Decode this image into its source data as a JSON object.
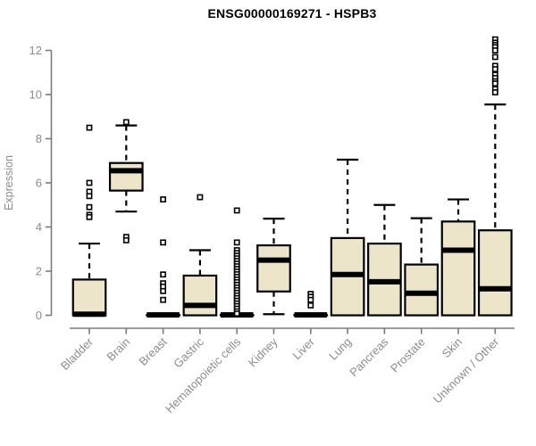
{
  "header": {
    "title": "ENSG00000169271 - HSPB3"
  },
  "colors": {
    "background": "#ffffff",
    "box_fill": "#ece5c9",
    "box_stroke": "#000000",
    "median": "#000000",
    "whisker": "#000000",
    "outlier": "#000000",
    "axis": "#7b7b7b",
    "tick_label": "#8c8c8c",
    "title": "#000000"
  },
  "chart_data": {
    "type": "boxplot",
    "title": "ENSG00000169271 - HSPB3",
    "xlabel": "",
    "ylabel": "Expression",
    "ylim": [
      0,
      12.6
    ],
    "yticks": [
      0,
      2,
      4,
      6,
      8,
      10,
      12
    ],
    "grid": false,
    "legend": false,
    "categories": [
      "Bladder",
      "Brain",
      "Breast",
      "Gastric",
      "Hematopoietic cells",
      "Kidney",
      "Liver",
      "Lung",
      "Pancreas",
      "Prostate",
      "Skin",
      "Unknown / Other"
    ],
    "series": [
      {
        "name": "Bladder",
        "low": 0,
        "q1": 0,
        "median": 0.05,
        "q3": 1.62,
        "high": 3.25,
        "outliers": [
          8.5,
          6.0,
          5.6,
          5.4,
          4.9,
          4.55,
          4.45
        ]
      },
      {
        "name": "Brain",
        "low": 4.7,
        "q1": 5.65,
        "median": 6.55,
        "q3": 6.9,
        "high": 8.6,
        "outliers": [
          8.75,
          3.55,
          3.4
        ]
      },
      {
        "name": "Breast",
        "low": 0,
        "q1": 0,
        "median": 0.02,
        "q3": 0.02,
        "high": 0,
        "outliers": [
          5.25,
          3.3,
          1.85,
          1.45,
          1.3,
          1.1,
          0.7
        ]
      },
      {
        "name": "Gastric",
        "low": 0,
        "q1": 0,
        "median": 0.45,
        "q3": 1.8,
        "high": 2.95,
        "outliers": [
          5.35
        ]
      },
      {
        "name": "Hematopoietic cells",
        "low": 0,
        "q1": 0,
        "median": 0.02,
        "q3": 0.02,
        "high": 0,
        "outliers": [
          4.75,
          3.3,
          2.95,
          2.82,
          2.7,
          2.58,
          2.46,
          2.34,
          2.22,
          2.1,
          1.98,
          1.86,
          1.74,
          1.62,
          1.5,
          1.38,
          1.26,
          1.14,
          1.02,
          0.9,
          0.78,
          0.66,
          0.54,
          0.42,
          0.3,
          0.18,
          0.08
        ]
      },
      {
        "name": "Kidney",
        "low": 0.05,
        "q1": 1.08,
        "median": 2.5,
        "q3": 3.17,
        "high": 4.38,
        "outliers": []
      },
      {
        "name": "Liver",
        "low": 0,
        "q1": 0,
        "median": 0.02,
        "q3": 0.02,
        "high": 0,
        "outliers": [
          0.97,
          0.84,
          0.7,
          0.45
        ]
      },
      {
        "name": "Lung",
        "low": 0,
        "q1": 0,
        "median": 1.85,
        "q3": 3.5,
        "high": 7.05,
        "outliers": []
      },
      {
        "name": "Pancreas",
        "low": 0,
        "q1": 0,
        "median": 1.52,
        "q3": 3.25,
        "high": 5.0,
        "outliers": []
      },
      {
        "name": "Prostate",
        "low": 0,
        "q1": 0,
        "median": 1.0,
        "q3": 2.3,
        "high": 4.4,
        "outliers": []
      },
      {
        "name": "Skin",
        "low": 0,
        "q1": 0,
        "median": 2.95,
        "q3": 4.25,
        "high": 5.25,
        "outliers": []
      },
      {
        "name": "Unknown / Other",
        "low": 0,
        "q1": 0,
        "median": 1.2,
        "q3": 3.85,
        "high": 9.55,
        "outliers": [
          12.5,
          12.35,
          12.25,
          12.15,
          12.0,
          11.7,
          11.3,
          11.15,
          10.9,
          10.75,
          10.6,
          10.5,
          10.25,
          10.1
        ]
      }
    ]
  }
}
